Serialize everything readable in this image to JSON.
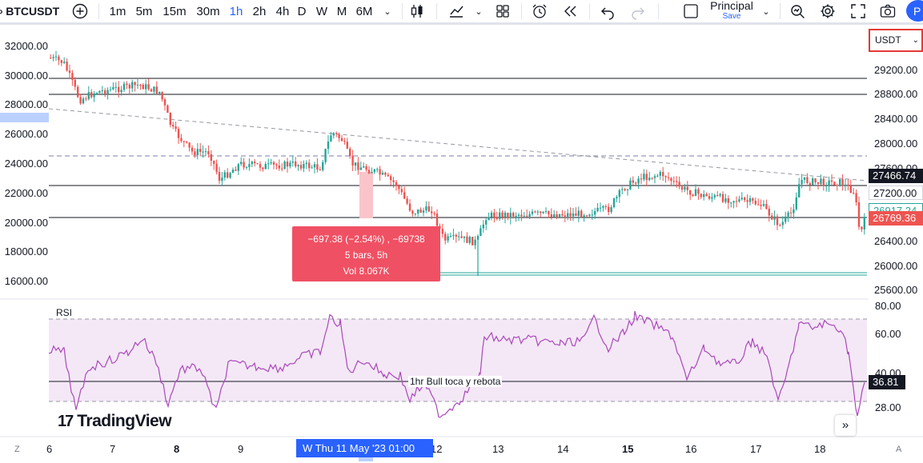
{
  "toolbar": {
    "symbol": "BTCUSDT",
    "timeframes": [
      "1m",
      "5m",
      "15m",
      "30m",
      "1h",
      "2h",
      "4h",
      "D",
      "W",
      "M",
      "6M"
    ],
    "active_timeframe": "1h",
    "layout_name": "Principal",
    "layout_save": "Save",
    "avatar_letter": "P",
    "accent_color": "#2962ff"
  },
  "price_axis": {
    "currency": "USDT",
    "labels": [
      "29200.00",
      "28800.00",
      "28400.00",
      "28000.00",
      "27600.00",
      "26400.00",
      "26000.00",
      "25600.00"
    ],
    "tags": {
      "hline": "27466.74",
      "level": "27200.00",
      "secondary": "26917.24",
      "last": "26769.36"
    }
  },
  "left_axis": {
    "labels": [
      "32000.00",
      "30000.00",
      "28000.00",
      "26000.00",
      "24000.00",
      "22000.00",
      "20000.00",
      "18000.00",
      "16000.00"
    ]
  },
  "measure": {
    "line1": "−697.38 (−2.54%) , −69738",
    "line2": "5 bars, 5h",
    "line3": "Vol 8.067K"
  },
  "rsi": {
    "title": "RSI",
    "axis_labels": [
      "80.00",
      "60.00",
      "40.00",
      "28.00"
    ],
    "value": "36.81",
    "note": "1hr Bull toca y rebota",
    "color": "#ab47bc"
  },
  "brand": {
    "logo_mark": "17",
    "name": "TradingView"
  },
  "time_axis": {
    "labels": [
      "6",
      "7",
      "8",
      "9",
      "12",
      "13",
      "14",
      "15",
      "16",
      "17",
      "18"
    ],
    "crosshair_date": "W   Thu 11 May '23   01:00"
  },
  "colors": {
    "up": "#26a69a",
    "down": "#ef5350",
    "measure_bg": "#f05063"
  }
}
